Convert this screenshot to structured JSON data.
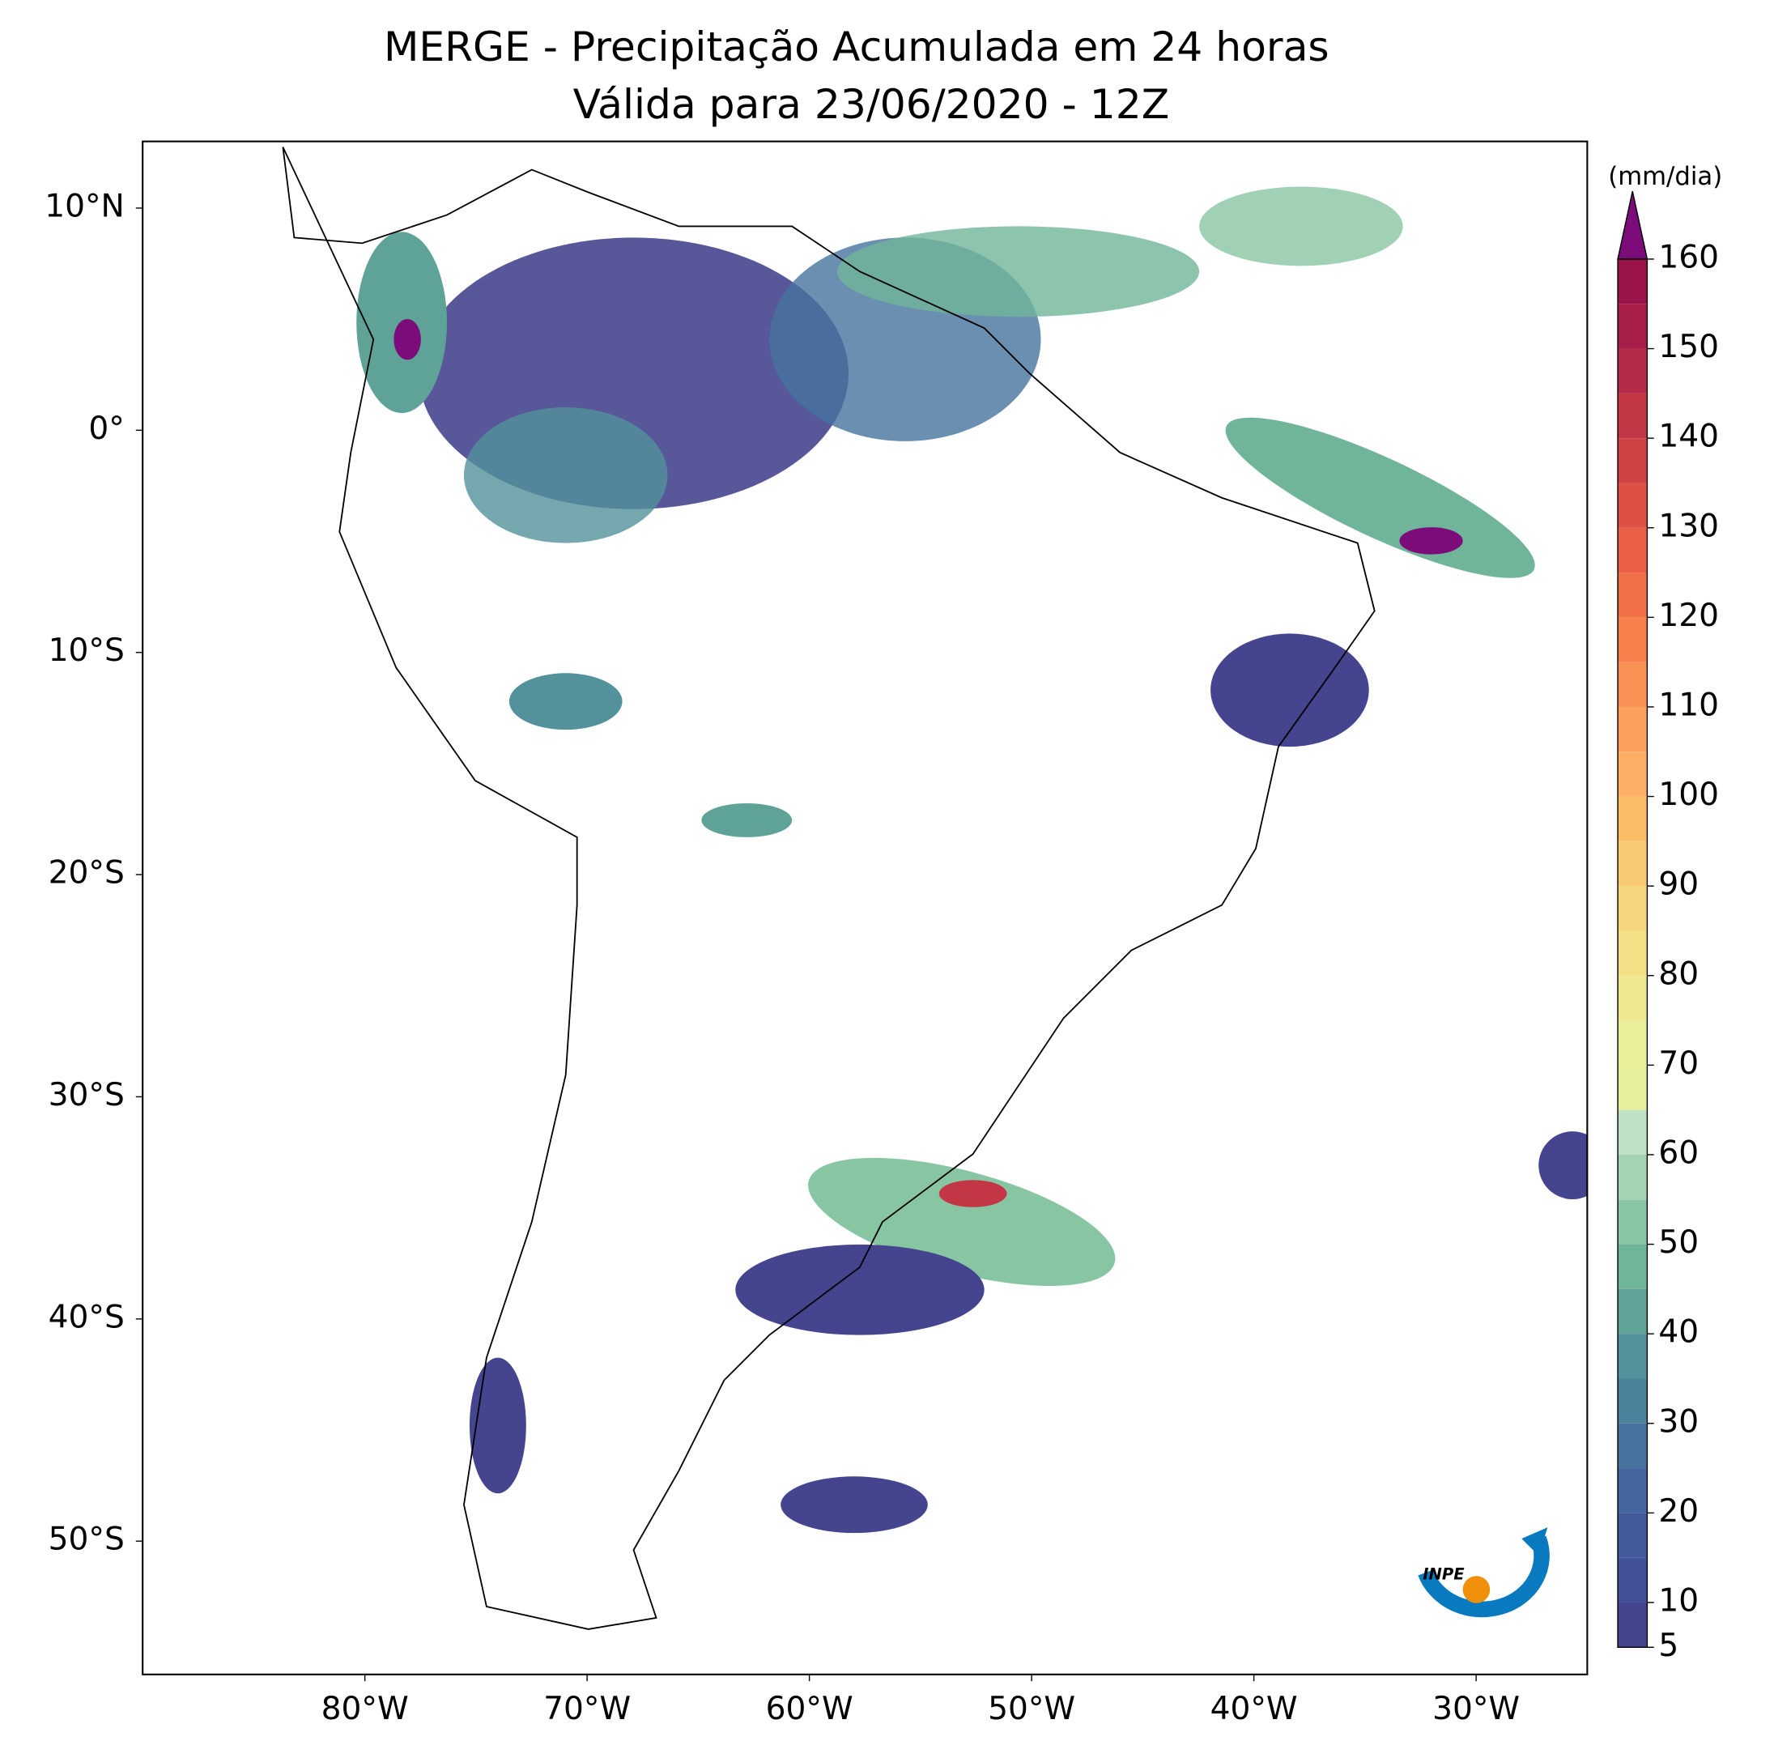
{
  "title": [
    "MERGE - Precipitação Acumulada em 24 horas",
    "Válida para 23/06/2020 - 12Z"
  ],
  "map": {
    "xlim": [
      -90,
      -25
    ],
    "ylim": [
      -56,
      13
    ],
    "xticks": [
      {
        "value": -80,
        "label": "80°W"
      },
      {
        "value": -70,
        "label": "70°W"
      },
      {
        "value": -60,
        "label": "60°W"
      },
      {
        "value": -50,
        "label": "50°W"
      },
      {
        "value": -40,
        "label": "40°W"
      },
      {
        "value": -30,
        "label": "30°W"
      }
    ],
    "yticks": [
      {
        "value": 10,
        "label": "10°N"
      },
      {
        "value": 0,
        "label": "0°"
      },
      {
        "value": -10,
        "label": "10°S"
      },
      {
        "value": -20,
        "label": "20°S"
      },
      {
        "value": -30,
        "label": "30°S"
      },
      {
        "value": -40,
        "label": "40°S"
      },
      {
        "value": -50,
        "label": "50°S"
      }
    ]
  },
  "colorbar": {
    "label": "(mm/dia)",
    "lim": [
      5,
      160
    ],
    "step": 5,
    "ticks": [
      5,
      10,
      20,
      30,
      40,
      50,
      60,
      70,
      80,
      90,
      100,
      110,
      120,
      130,
      140,
      150,
      160
    ],
    "colors": [
      "#45458f",
      "#434f99",
      "#42599c",
      "#44669f",
      "#46739d",
      "#4b829b",
      "#53929a",
      "#5fa398",
      "#70b59a",
      "#88c5a3",
      "#a3d3b0",
      "#c0e1c4",
      "#e6f09b",
      "#eaee98",
      "#efe891",
      "#f2df86",
      "#f5d67d",
      "#f8ca72",
      "#fbbd68",
      "#fdb065",
      "#fca15c",
      "#fa9054",
      "#f67f4c",
      "#f16e46",
      "#e95e44",
      "#de4f44",
      "#d14245",
      "#c33646",
      "#b52a48",
      "#a71e49",
      "#9a144a"
    ],
    "extend_color": "#7b0c7a"
  },
  "logo": "INPE"
}
